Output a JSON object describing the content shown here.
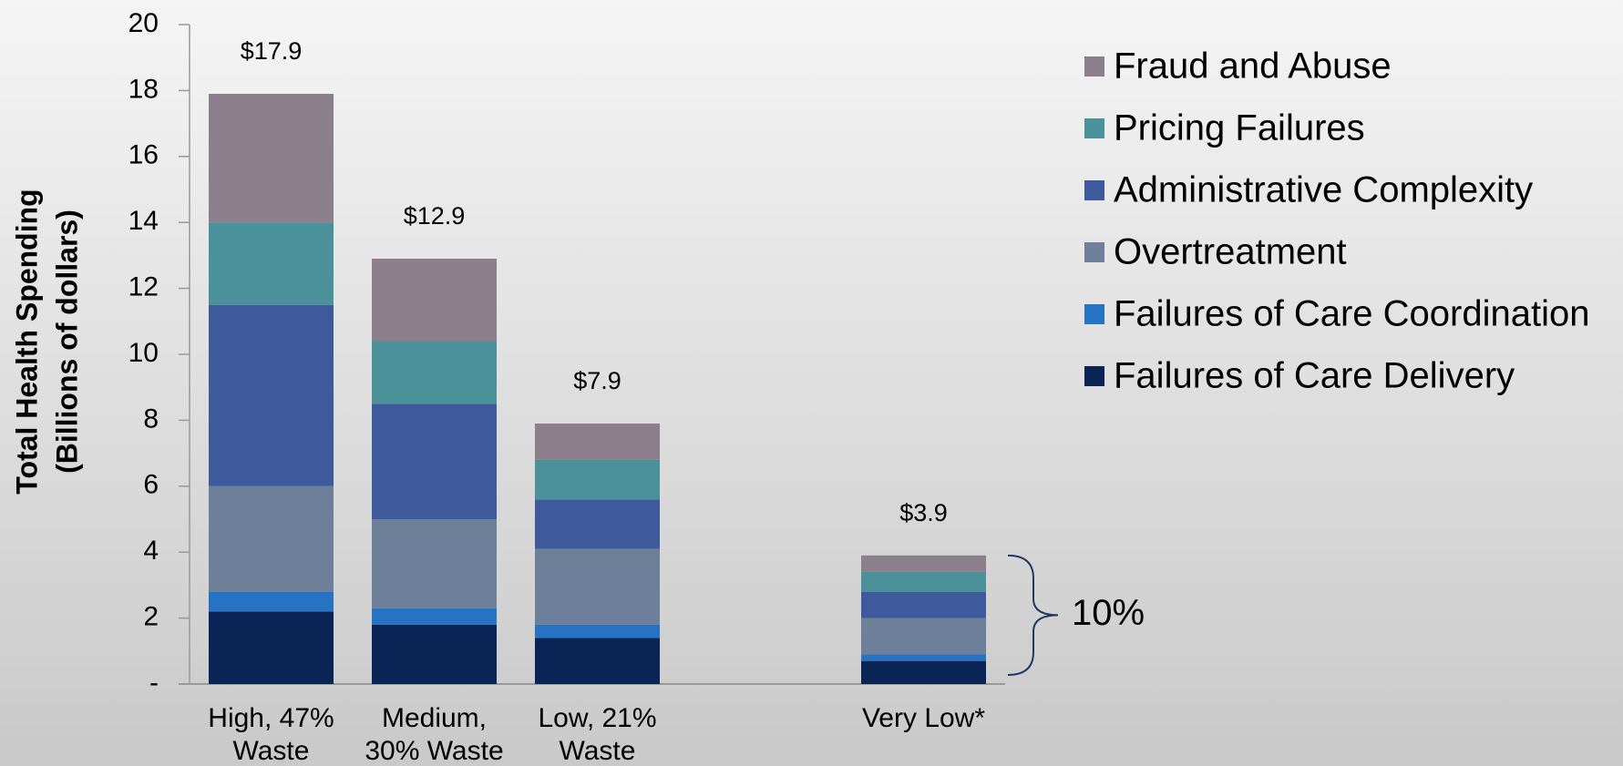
{
  "chart_data": {
    "type": "stacked_bar",
    "ylabel": [
      "Total Health Spending",
      "(Billions of dollars)"
    ],
    "categories": [
      "High, 47%\nWaste",
      "Medium,\n30% Waste",
      "Low, 21%\nWaste",
      null,
      "Very Low*"
    ],
    "series": [
      {
        "name": "Failures of Care Delivery",
        "color": "#0b2456",
        "values": [
          2.2,
          1.8,
          1.4,
          null,
          0.7
        ]
      },
      {
        "name": "Failures of Care Coordination",
        "color": "#2673c4",
        "values": [
          0.6,
          0.5,
          0.4,
          null,
          0.2
        ]
      },
      {
        "name": "Overtreatment",
        "color": "#6e7f99",
        "values": [
          3.2,
          2.7,
          2.3,
          null,
          1.1
        ]
      },
      {
        "name": "Administrative Complexity",
        "color": "#3f5a9c",
        "values": [
          5.5,
          3.5,
          1.5,
          null,
          0.8
        ]
      },
      {
        "name": "Pricing Failures",
        "color": "#4b9199",
        "values": [
          2.5,
          1.9,
          1.2,
          null,
          0.6
        ]
      },
      {
        "name": "Fraud and Abuse",
        "color": "#8c7f8c",
        "values": [
          3.9,
          2.5,
          1.1,
          null,
          0.5
        ]
      }
    ],
    "totals": [
      17.9,
      12.9,
      7.9,
      null,
      3.9
    ],
    "total_labels": [
      "$17.9",
      "$12.9",
      "$7.9",
      null,
      "$3.9"
    ],
    "annotation": "10%",
    "ylim": [
      0,
      20
    ],
    "yticks": [
      {
        "value": 0,
        "label": "-"
      },
      2,
      4,
      6,
      8,
      10,
      12,
      14,
      16,
      18,
      20
    ],
    "legend": "right"
  }
}
